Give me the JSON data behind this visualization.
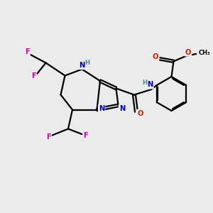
{
  "bg_color": "#ebebeb",
  "atom_colors": {
    "C": "#000000",
    "N": "#0000cc",
    "O": "#cc2200",
    "F": "#cc00aa",
    "H": "#448888"
  },
  "bond_color": "#000000",
  "bond_width": 1.6,
  "figsize": [
    3.0,
    3.0
  ],
  "dpi": 100,
  "xlim": [
    0,
    10
  ],
  "ylim": [
    0,
    10
  ]
}
